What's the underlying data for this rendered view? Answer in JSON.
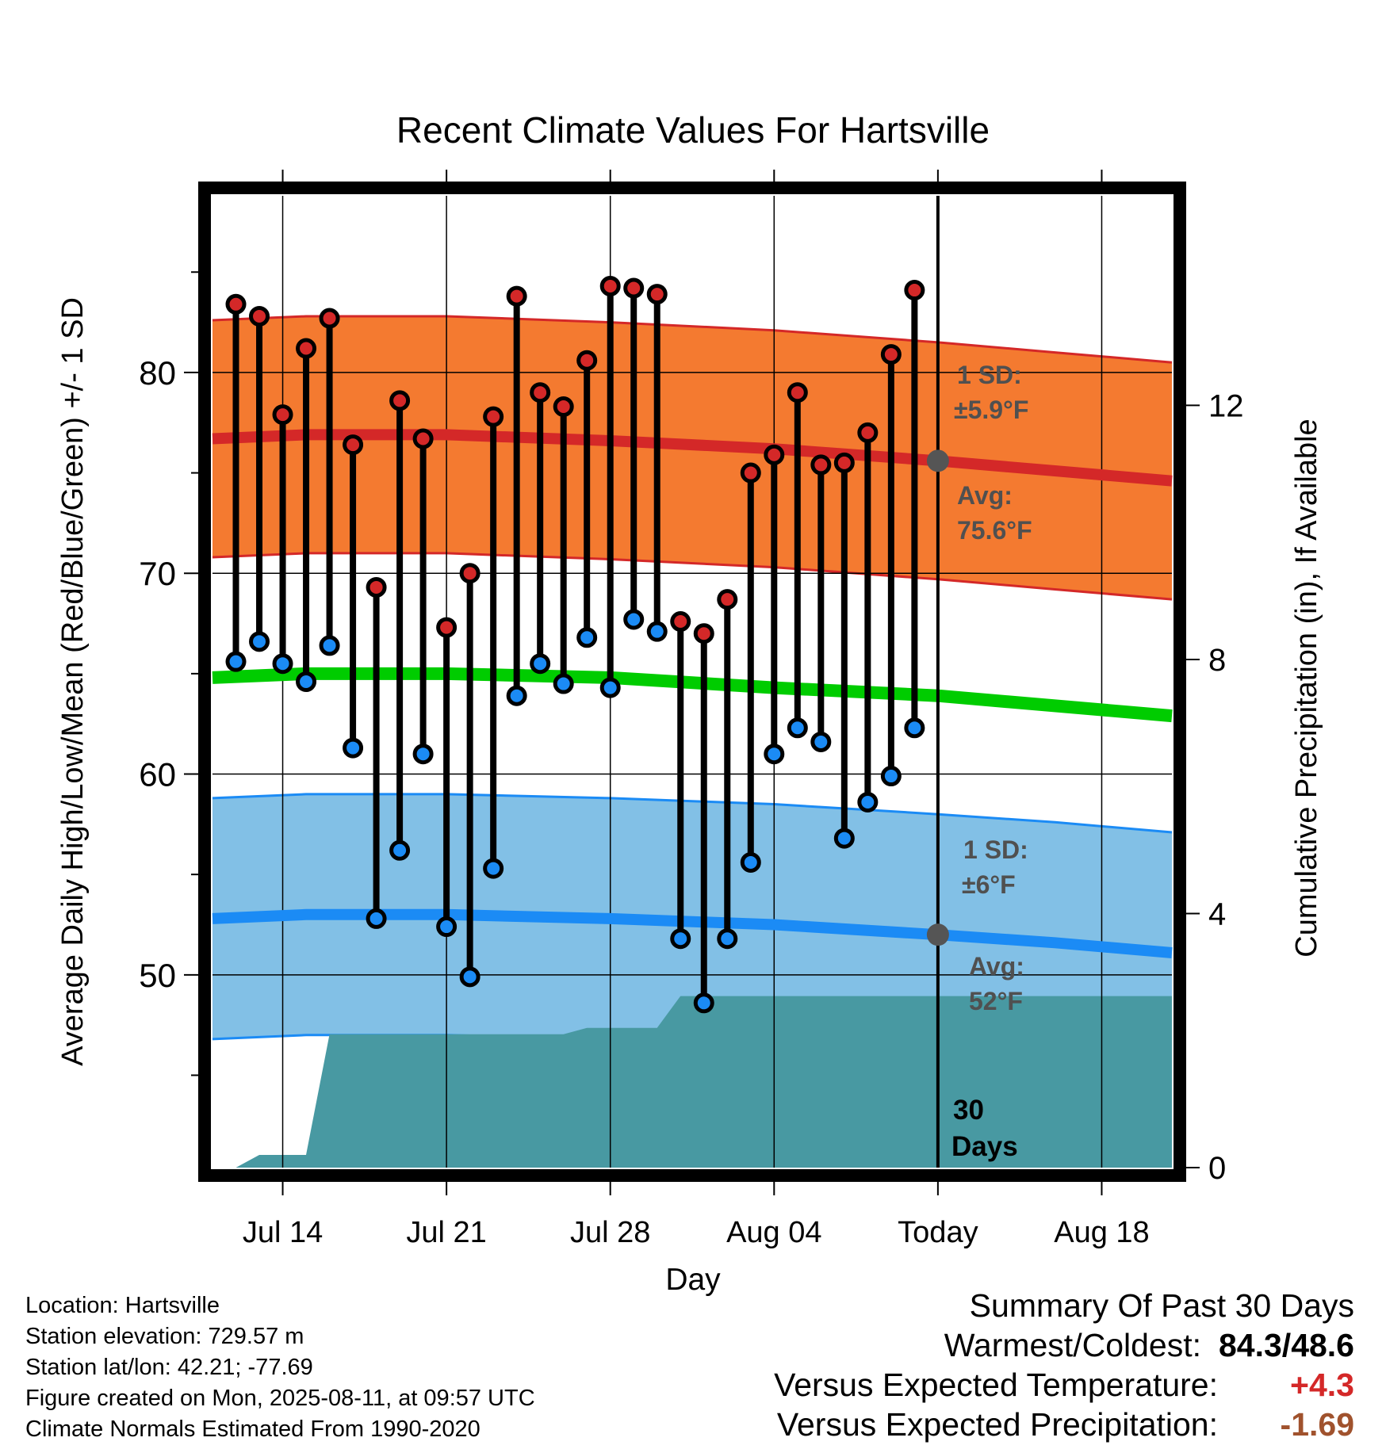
{
  "chart_data": {
    "type": "line",
    "title": "Recent Climate Values For Hartsville",
    "xlabel": "Day",
    "ylabel": "Average Daily High/Low/Mean (Red/Blue/Green) +/- 1 SD",
    "y2label": "Cumulative Precipitation (in), If Available",
    "xlim": [
      "2025-07-11",
      "2025-08-21"
    ],
    "ylim": [
      40.4,
      88.8
    ],
    "y2lim": [
      0,
      15.3
    ],
    "x_ticks": [
      {
        "date": "2025-07-14",
        "label": "Jul 14"
      },
      {
        "date": "2025-07-21",
        "label": "Jul 21"
      },
      {
        "date": "2025-07-28",
        "label": "Jul 28"
      },
      {
        "date": "2025-08-04",
        "label": "Aug 04"
      },
      {
        "date": "2025-08-11",
        "label": "Today"
      },
      {
        "date": "2025-08-18",
        "label": "Aug 18"
      }
    ],
    "y_ticks": [
      50,
      60,
      70,
      80
    ],
    "y2_ticks": [
      0,
      4,
      8,
      12
    ],
    "grid": true,
    "today": "2025-08-11",
    "daily": [
      {
        "date": "2025-07-12",
        "high": 83.4,
        "low": 65.6
      },
      {
        "date": "2025-07-13",
        "high": 82.8,
        "low": 66.6
      },
      {
        "date": "2025-07-14",
        "high": 77.9,
        "low": 65.5
      },
      {
        "date": "2025-07-15",
        "high": 81.2,
        "low": 64.6
      },
      {
        "date": "2025-07-16",
        "high": 82.7,
        "low": 66.4
      },
      {
        "date": "2025-07-17",
        "high": 76.4,
        "low": 61.3
      },
      {
        "date": "2025-07-18",
        "high": 69.3,
        "low": 52.8
      },
      {
        "date": "2025-07-19",
        "high": 78.6,
        "low": 56.2
      },
      {
        "date": "2025-07-20",
        "high": 76.7,
        "low": 61.0
      },
      {
        "date": "2025-07-21",
        "high": 67.3,
        "low": 52.4
      },
      {
        "date": "2025-07-22",
        "high": 70.0,
        "low": 49.9
      },
      {
        "date": "2025-07-23",
        "high": 77.8,
        "low": 55.3
      },
      {
        "date": "2025-07-24",
        "high": 83.8,
        "low": 63.9
      },
      {
        "date": "2025-07-25",
        "high": 79.0,
        "low": 65.5
      },
      {
        "date": "2025-07-26",
        "high": 78.3,
        "low": 64.5
      },
      {
        "date": "2025-07-27",
        "high": 80.6,
        "low": 66.8
      },
      {
        "date": "2025-07-28",
        "high": 84.3,
        "low": 64.3
      },
      {
        "date": "2025-07-29",
        "high": 84.2,
        "low": 67.7
      },
      {
        "date": "2025-07-30",
        "high": 83.9,
        "low": 67.1
      },
      {
        "date": "2025-07-31",
        "high": 67.6,
        "low": 51.8
      },
      {
        "date": "2025-08-01",
        "high": 67.0,
        "low": 48.6
      },
      {
        "date": "2025-08-02",
        "high": 68.7,
        "low": 51.8
      },
      {
        "date": "2025-08-03",
        "high": 75.0,
        "low": 55.6
      },
      {
        "date": "2025-08-04",
        "high": 75.9,
        "low": 61.0
      },
      {
        "date": "2025-08-05",
        "high": 79.0,
        "low": 62.3
      },
      {
        "date": "2025-08-06",
        "high": 75.4,
        "low": 61.6
      },
      {
        "date": "2025-08-07",
        "high": 75.5,
        "low": 56.8
      },
      {
        "date": "2025-08-08",
        "high": 77.0,
        "low": 58.6
      },
      {
        "date": "2025-08-09",
        "high": 80.9,
        "low": 59.9
      },
      {
        "date": "2025-08-10",
        "high": 84.1,
        "low": 62.3
      }
    ],
    "normals": [
      {
        "date": "2025-07-11",
        "high": 76.7,
        "low": 52.8,
        "mean": 64.8
      },
      {
        "date": "2025-07-15",
        "high": 76.9,
        "low": 53.0,
        "mean": 65.0
      },
      {
        "date": "2025-07-21",
        "high": 76.9,
        "low": 53.0,
        "mean": 65.0
      },
      {
        "date": "2025-07-28",
        "high": 76.6,
        "low": 52.8,
        "mean": 64.8
      },
      {
        "date": "2025-08-04",
        "high": 76.2,
        "low": 52.5,
        "mean": 64.3
      },
      {
        "date": "2025-08-11",
        "high": 75.6,
        "low": 52.0,
        "mean": 63.9
      },
      {
        "date": "2025-08-16",
        "high": 75.1,
        "low": 51.6,
        "mean": 63.4
      },
      {
        "date": "2025-08-21",
        "high": 74.6,
        "low": 51.1,
        "mean": 62.9
      }
    ],
    "sd_high": 5.9,
    "sd_low": 6.0,
    "precip_cumulative": [
      {
        "date": "2025-07-11",
        "value": 0.0
      },
      {
        "date": "2025-07-12",
        "value": 0.0
      },
      {
        "date": "2025-07-13",
        "value": 0.2
      },
      {
        "date": "2025-07-14",
        "value": 0.2
      },
      {
        "date": "2025-07-15",
        "value": 0.2
      },
      {
        "date": "2025-07-16",
        "value": 2.1
      },
      {
        "date": "2025-07-26",
        "value": 2.1
      },
      {
        "date": "2025-07-27",
        "value": 2.2
      },
      {
        "date": "2025-07-30",
        "value": 2.2
      },
      {
        "date": "2025-07-31",
        "value": 2.7
      },
      {
        "date": "2025-08-21",
        "value": 2.7
      }
    ],
    "annotations": {
      "high_sd_label": [
        "1 SD:",
        "±5.9°F"
      ],
      "high_avg_label": [
        "Avg:",
        "75.6°F"
      ],
      "low_sd_label": [
        "1 SD:",
        "±6°F"
      ],
      "low_avg_label": [
        "Avg:",
        "52°F"
      ],
      "period_label": [
        "30",
        "Days"
      ]
    },
    "colors": {
      "high": "#d42828",
      "high_band": "#f47a30",
      "low": "#1b8bf5",
      "low_band": "#82c0e6",
      "mean": "#00cc00",
      "precip": "#4899a2",
      "avg_marker": "#555555",
      "annotation": "#505050",
      "temp_plus": "#d42828",
      "precip_minus": "#a0522d"
    }
  },
  "info": {
    "location": "Location: Hartsville",
    "elevation": "Station elevation: 729.57 m",
    "latlon": "Station lat/lon: 42.21; -77.69",
    "created": "Figure created on Mon, 2025-08-11, at 09:57 UTC",
    "normals": "Climate Normals Estimated From 1990-2020"
  },
  "summary": {
    "title": "Summary Of Past 30 Days",
    "warm_cold_label": "Warmest/Coldest:",
    "warm_cold_value": "84.3/48.6",
    "temp_label": "Versus Expected Temperature:",
    "temp_value": "+4.3",
    "precip_label": "Versus Expected Precipitation:",
    "precip_value": "-1.69"
  }
}
